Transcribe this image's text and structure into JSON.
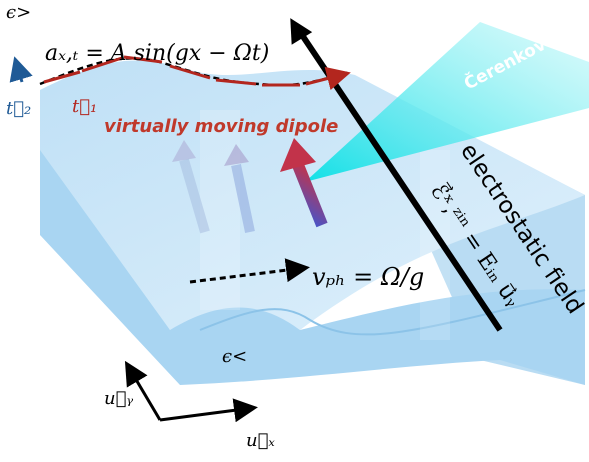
{
  "labels": {
    "eps_top": "ϵ>",
    "eps_bottom": "ϵ<",
    "surface_eq": "aₓ,ₜ = A sin(gx − Ωt)",
    "t1": "t⃗₁",
    "t2": "t⃗₂",
    "dipole": "virtually moving dipole",
    "cerenkov": "Čerenkov light",
    "field_title": "electrostatic field",
    "field_eq": "ℰ⃗ˣ,ᶻⁱⁿ = Eᵢₙ u⃗ᵧ",
    "vph": "vₚₕ = Ω/g",
    "uy": "u⃗ᵧ",
    "ux": "u⃗ₓ"
  },
  "colors": {
    "slab_front": "#9fd0ef",
    "slab_top": "#cfe8f8",
    "slab_right": "#b5dbf3",
    "field_arrow": "#000000",
    "tangent_arrows": "#b3261e",
    "t2_arrow": "#1f5a96",
    "dipole_text": "#c0392b",
    "cone": "#3fe6e6",
    "vph_arrow": "#000000"
  }
}
